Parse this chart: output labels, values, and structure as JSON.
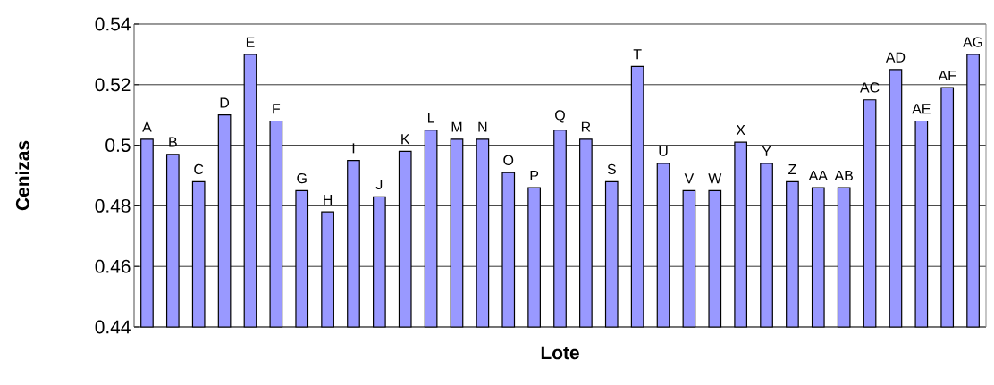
{
  "chart_data": {
    "type": "bar",
    "xlabel": "Lote",
    "ylabel": "Cenizas",
    "categories": [
      "A",
      "B",
      "C",
      "D",
      "E",
      "F",
      "G",
      "H",
      "I",
      "J",
      "K",
      "L",
      "M",
      "N",
      "O",
      "P",
      "Q",
      "R",
      "S",
      "T",
      "U",
      "V",
      "W",
      "X",
      "Y",
      "Z",
      "AA",
      "AB",
      "AC",
      "AD",
      "AE",
      "AF",
      "AG"
    ],
    "values": [
      0.502,
      0.497,
      0.488,
      0.51,
      0.53,
      0.508,
      0.485,
      0.478,
      0.495,
      0.483,
      0.498,
      0.505,
      0.502,
      0.502,
      0.491,
      0.486,
      0.505,
      0.502,
      0.488,
      0.526,
      0.494,
      0.485,
      0.485,
      0.501,
      0.494,
      0.488,
      0.486,
      0.486,
      0.515,
      0.525,
      0.508,
      0.519,
      0.53
    ],
    "color": "#9999ff",
    "ylim": [
      0.44,
      0.54
    ],
    "yticks": [
      0.44,
      0.46,
      0.48,
      0.5,
      0.52,
      0.54
    ],
    "grid": "y"
  }
}
